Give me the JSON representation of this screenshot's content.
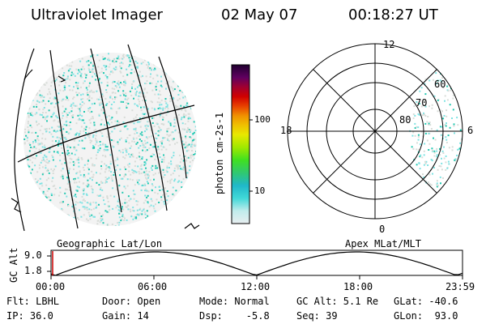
{
  "header": {
    "title": "Ultraviolet Imager",
    "date": "02 May 07",
    "time": "00:18:27 UT"
  },
  "left_panel": {
    "caption": "Geographic Lat/Lon"
  },
  "right_panel": {
    "caption": "Apex MLat/MLT",
    "mlt_labels": [
      "12",
      "18",
      "6",
      "0"
    ],
    "mlat_labels": [
      "60",
      "70",
      "80"
    ]
  },
  "colorbar": {
    "unit_label": "photon cm-2s-1",
    "tick_labels": [
      "100",
      "10"
    ]
  },
  "alt_plot": {
    "ylabel": "GC Alt",
    "ytick_high": "9.0",
    "ytick_low": "1.8",
    "x_ticks": [
      "00:00",
      "06:00",
      "12:00",
      "18:00",
      "23:59"
    ]
  },
  "status": {
    "filter": "Flt: LBHL",
    "ip": "IP: 36.0",
    "door": "Door: Open",
    "gain": "Gain: 14",
    "mode": "Mode: Normal",
    "dsp": "Dsp:    -5.8",
    "gcalt": "GC Alt: 5.1 Re",
    "seq": "Seq: 39",
    "glat": "GLat: -40.6",
    "glon": "GLon:  93.0"
  },
  "colors": {
    "speckle_light": "#d8dcd8",
    "speckle_cyan": "#7fe3e3",
    "speckle_teal": "#20c8b0",
    "marker_red": "#cc0000"
  }
}
